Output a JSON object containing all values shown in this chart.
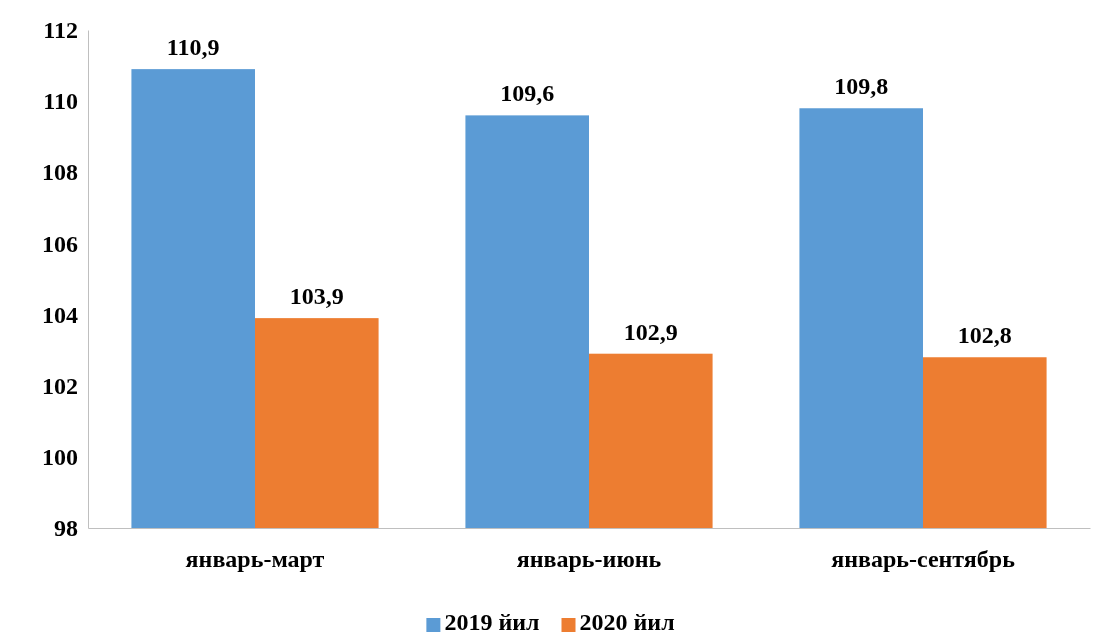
{
  "chart_data": {
    "type": "bar",
    "categories": [
      "январь-март",
      "январь-июнь",
      "январь-сентябрь"
    ],
    "series": [
      {
        "name": "2019 йил",
        "color": "#5b9bd5",
        "values": [
          110.9,
          109.6,
          109.8
        ],
        "value_labels": [
          "110,9",
          "109,6",
          "109,8"
        ]
      },
      {
        "name": "2020 йил",
        "color": "#ed7d31",
        "values": [
          103.9,
          102.9,
          102.8
        ],
        "value_labels": [
          "103,9",
          "102,9",
          "102,8"
        ]
      }
    ],
    "ylim": [
      98,
      112
    ],
    "yticks": [
      98,
      100,
      102,
      104,
      106,
      108,
      110,
      112
    ],
    "grid": false,
    "legend": "bottom"
  }
}
